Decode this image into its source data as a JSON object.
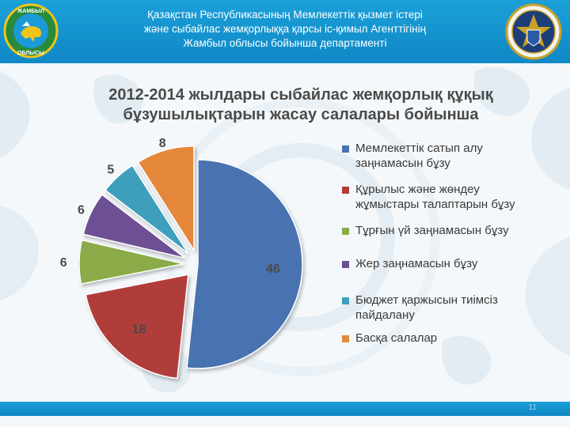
{
  "header": {
    "line1": "Қазақстан Республикасының Мемлекеттік қызмет істері",
    "line2": "және сыбайлас жемқорлыққа қарсы іс-қимыл Агенттігінің",
    "line3": "Жамбыл облысы бойынша департаменті"
  },
  "logos": {
    "left": {
      "top_text": "ЖАМБЫЛ",
      "bottom_text": "ОБЛЫСЫ"
    }
  },
  "chart_data": {
    "type": "pie",
    "title_line1": "2012-2014 жылдары сыбайлас жемқорлық құқық",
    "title_line2": "бұзушылықтарын жасау салалары бойынша",
    "categories": [
      "Мемлекеттік сатып алу заңнамасын бұзу",
      "Құрылыс және жөндеу жұмыстары талаптарын бұзу",
      "Тұрғын үй заңнамасын бұзу",
      "Жер заңнамасын бұзу",
      "Бюджет қаржысын тиімсіз пайдалану",
      "Басқа салалар"
    ],
    "values": [
      46,
      18,
      6,
      6,
      5,
      8
    ],
    "data_labels": [
      "46",
      "18",
      "6",
      "6",
      "5",
      "8"
    ],
    "colors": [
      "#4a72b0",
      "#b13d3a",
      "#8aab46",
      "#6d4f94",
      "#3c9fbc",
      "#e5873a"
    ],
    "legend_position": "right",
    "exploded": true
  },
  "footer": {
    "page_number": "11"
  }
}
